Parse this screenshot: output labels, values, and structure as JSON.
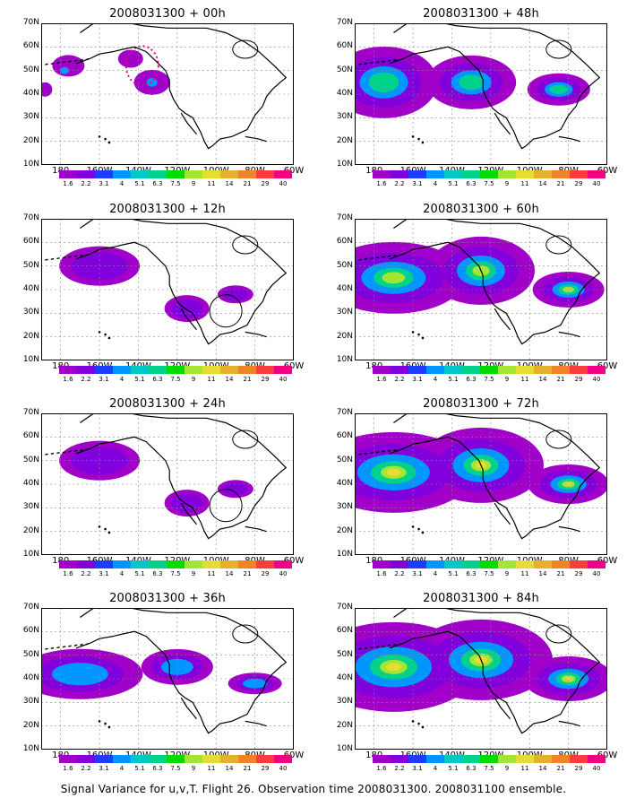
{
  "panels": [
    {
      "title": "2008031300 + 00h",
      "level": 0
    },
    {
      "title": "2008031300 + 48h",
      "level": 3
    },
    {
      "title": "2008031300 + 12h",
      "level": 1
    },
    {
      "title": "2008031300 + 60h",
      "level": 4
    },
    {
      "title": "2008031300 + 24h",
      "level": 1
    },
    {
      "title": "2008031300 + 72h",
      "level": 5
    },
    {
      "title": "2008031300 + 36h",
      "level": 2
    },
    {
      "title": "2008031300 + 84h",
      "level": 6
    }
  ],
  "lat_labels": [
    "70N",
    "60N",
    "50N",
    "40N",
    "30N",
    "20N",
    "10N"
  ],
  "lon_labels": [
    "180",
    "160W",
    "140W",
    "120W",
    "100W",
    "80W",
    "60W"
  ],
  "colorbar": {
    "colors": [
      "#a000c8",
      "#8200dc",
      "#1e3cff",
      "#0096ff",
      "#00c8c8",
      "#00d28c",
      "#00dc00",
      "#a0e632",
      "#e6dc32",
      "#e6af2d",
      "#f08228",
      "#fa3c3c",
      "#f00082"
    ],
    "labels": [
      "1.6",
      "2.2",
      "3.1",
      "4",
      "5.1",
      "6.3",
      "7.5",
      "9",
      "11",
      "14",
      "21",
      "29",
      "40"
    ]
  },
  "caption": "Signal Variance for u,v,T. Flight 26. Observation time 2008031300. 2008031100 ensemble."
}
